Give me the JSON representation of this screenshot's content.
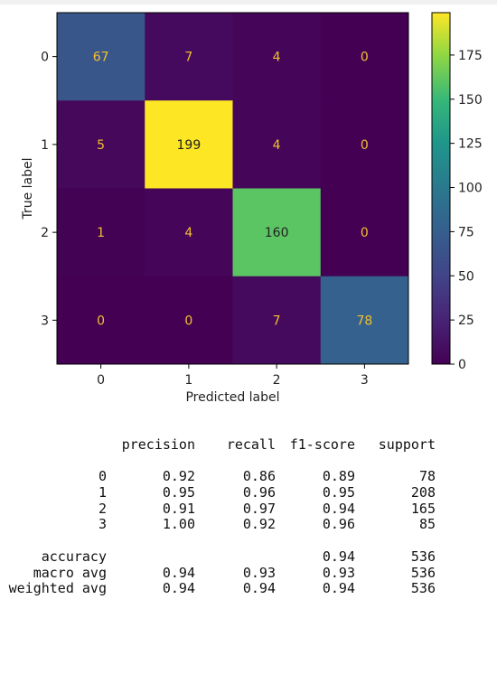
{
  "chart_data": {
    "type": "heatmap",
    "matrix": [
      [
        67,
        7,
        4,
        0
      ],
      [
        5,
        199,
        4,
        0
      ],
      [
        1,
        4,
        160,
        0
      ],
      [
        0,
        0,
        7,
        78
      ]
    ],
    "xticks": [
      "0",
      "1",
      "2",
      "3"
    ],
    "yticks": [
      "0",
      "1",
      "2",
      "3"
    ],
    "xlabel": "Predicted label",
    "ylabel": "True label",
    "colormap": "viridis",
    "value_range": [
      0,
      199
    ],
    "colorbar_ticks": [
      "0",
      "25",
      "50",
      "75",
      "100",
      "125",
      "150",
      "175"
    ],
    "colorbar_tick_values": [
      0,
      25,
      50,
      75,
      100,
      125,
      150,
      175
    ],
    "cell_text_color_dark_bg": "#f0c030",
    "cell_text_color_light_bg": "#222222"
  },
  "report": {
    "headers": [
      "precision",
      "recall",
      "f1-score",
      "support"
    ],
    "rows": [
      [
        "0",
        "0.92",
        "0.86",
        "0.89",
        "78"
      ],
      [
        "1",
        "0.95",
        "0.96",
        "0.95",
        "208"
      ],
      [
        "2",
        "0.91",
        "0.97",
        "0.94",
        "165"
      ],
      [
        "3",
        "1.00",
        "0.92",
        "0.96",
        "85"
      ]
    ],
    "accuracy": {
      "label": "accuracy",
      "f1": "0.94",
      "support": "536"
    },
    "macro": {
      "label": "macro avg",
      "precision": "0.94",
      "recall": "0.93",
      "f1": "0.93",
      "support": "536"
    },
    "weighted": {
      "label": "weighted avg",
      "precision": "0.94",
      "recall": "0.94",
      "f1": "0.94",
      "support": "536"
    }
  }
}
